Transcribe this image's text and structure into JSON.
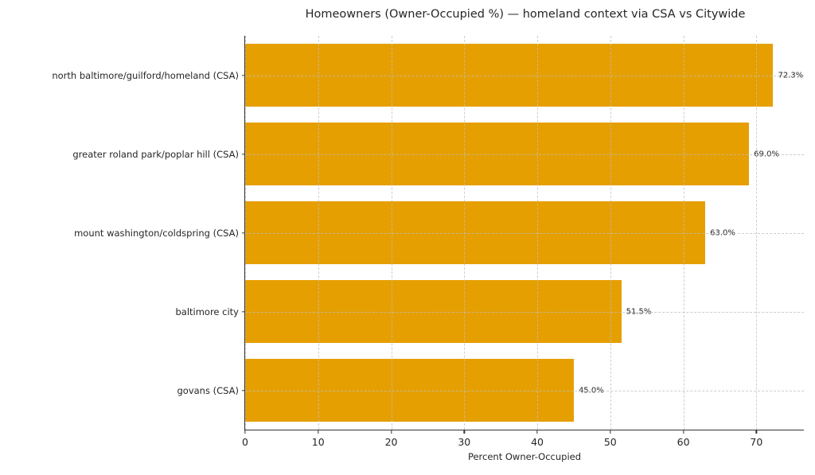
{
  "chart_data": {
    "type": "bar",
    "orientation": "horizontal",
    "title": "Homeowners (Owner-Occupied %) — homeland context via CSA vs Citywide",
    "categories": [
      "north baltimore/guilford/homeland (CSA)",
      "greater roland park/poplar hill (CSA)",
      "mount washington/coldspring (CSA)",
      "baltimore city",
      "govans (CSA)"
    ],
    "values": [
      72.3,
      69.0,
      63.0,
      51.5,
      45.0
    ],
    "value_labels": [
      "72.3%",
      "69.0%",
      "63.0%",
      "51.5%",
      "45.0%"
    ],
    "xlabel": "Percent Owner-Occupied",
    "ylabel": "",
    "xlim": [
      0,
      76.5
    ],
    "xticks": [
      0,
      10,
      20,
      30,
      40,
      50,
      60,
      70
    ],
    "xtick_labels": [
      "0",
      "10",
      "20",
      "30",
      "40",
      "50",
      "60",
      "70"
    ],
    "grid": true,
    "grid_style": "dashed",
    "legend": null,
    "bar_color": "#E69F00",
    "background_color": "#ffffff",
    "text_color": "#262626",
    "spine_color": "#333333"
  }
}
